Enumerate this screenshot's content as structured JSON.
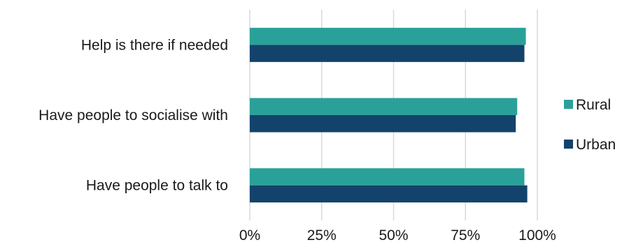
{
  "chart_data": {
    "type": "bar",
    "orientation": "horizontal",
    "categories": [
      "Help is there if needed",
      "Have people to socialise with",
      "Have people to talk to"
    ],
    "series": [
      {
        "name": "Rural",
        "color": "#2aa198",
        "values": [
          96,
          93,
          95.5
        ]
      },
      {
        "name": "Urban",
        "color": "#13436b",
        "values": [
          95.5,
          92.5,
          96.5
        ]
      }
    ],
    "xlim": [
      0,
      100
    ],
    "xticks": [
      0,
      25,
      50,
      75,
      100
    ],
    "xtick_labels": [
      "0%",
      "25%",
      "50%",
      "75%",
      "100%"
    ],
    "grid": "vertical",
    "legend_position": "right"
  }
}
